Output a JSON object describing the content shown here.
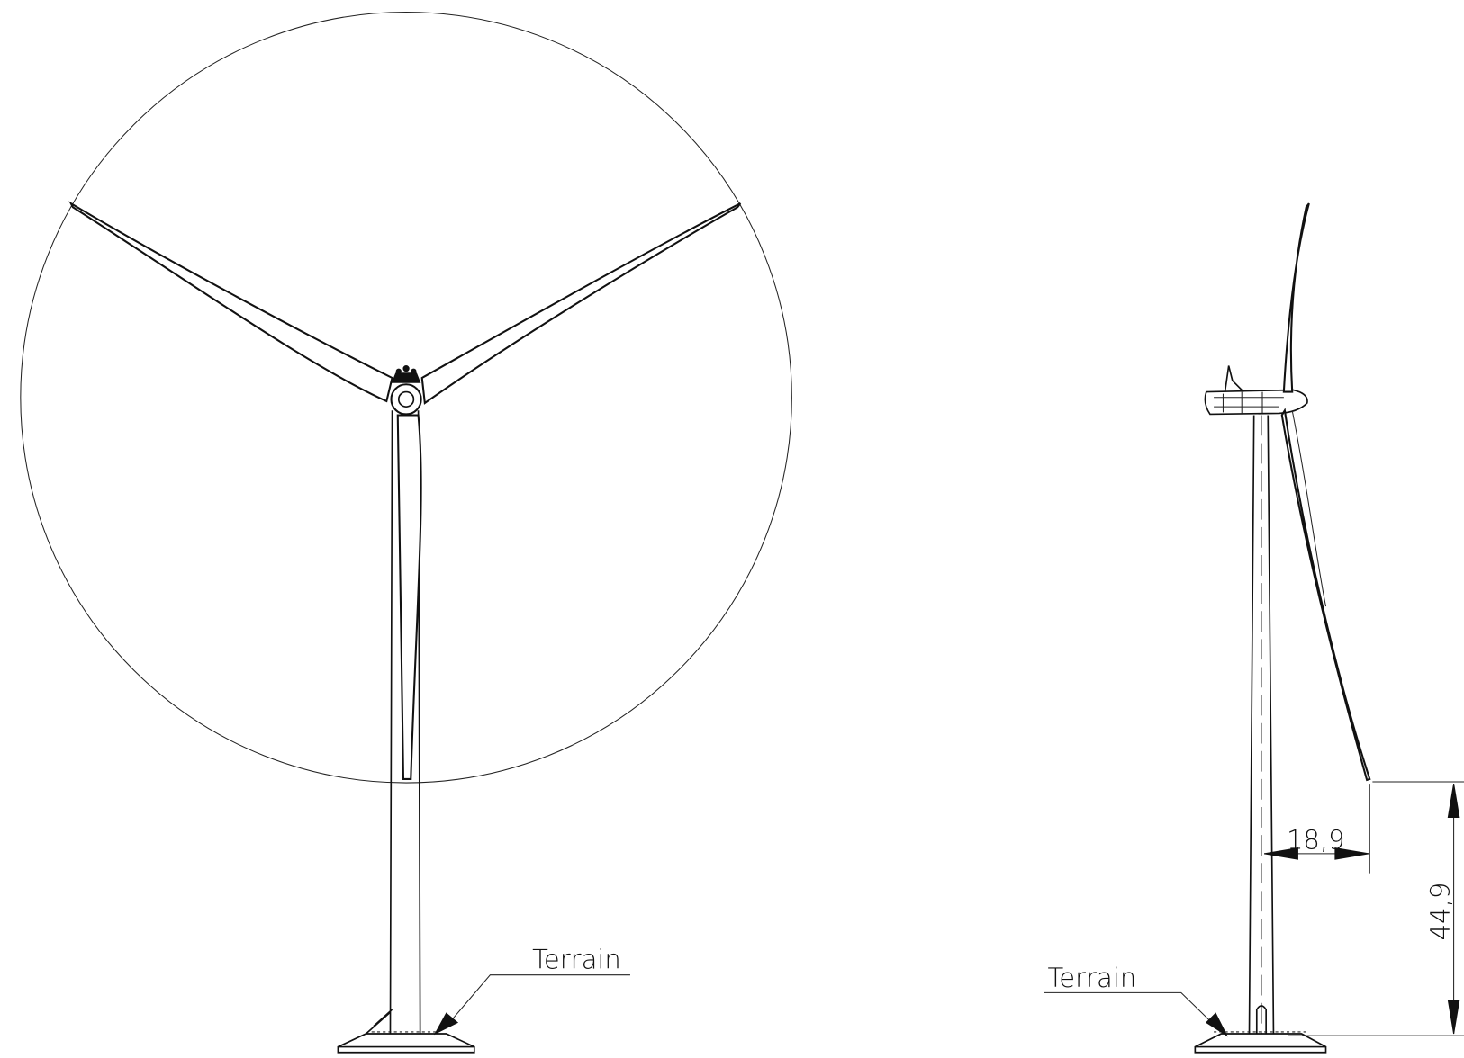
{
  "front_view": {
    "terrain_label": "Terrain"
  },
  "side_view": {
    "terrain_label": "Terrain",
    "dimensions": {
      "horizontal": "18,9",
      "vertical": "44,9"
    }
  }
}
